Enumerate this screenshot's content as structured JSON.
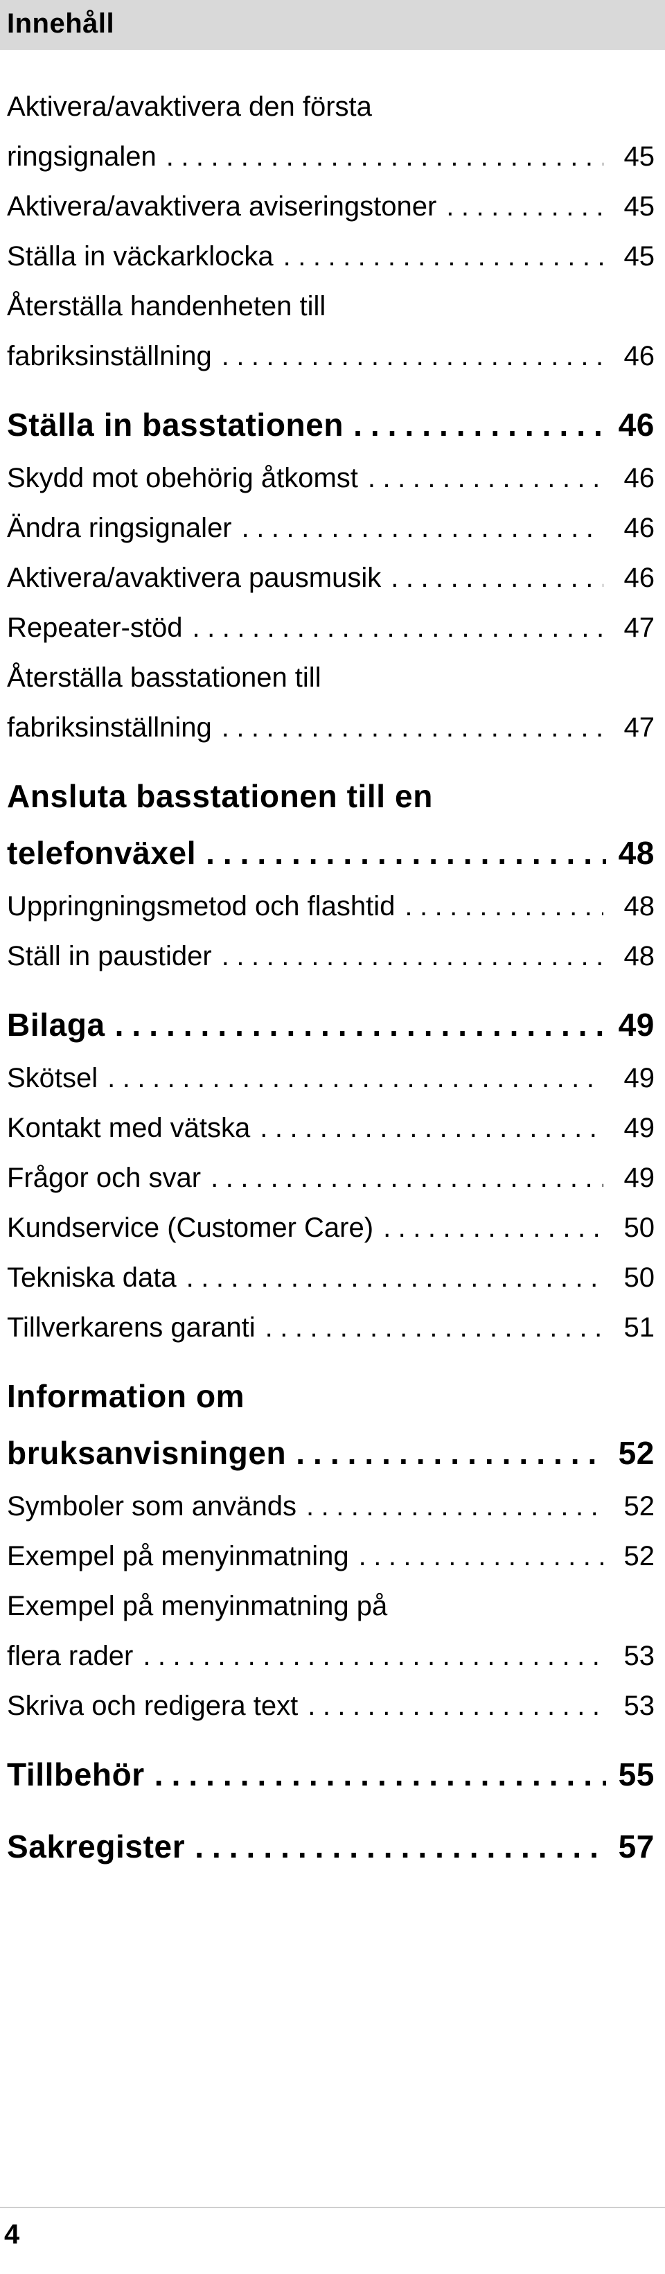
{
  "header": {
    "title": "Innehåll"
  },
  "toc": [
    {
      "lines": [
        "Aktivera/avaktivera den första",
        "ringsignalen"
      ],
      "page": "45",
      "level": "sub"
    },
    {
      "lines": [
        "Aktivera/avaktivera aviseringstoner"
      ],
      "page": "45",
      "level": "sub"
    },
    {
      "lines": [
        "Ställa in väckarklocka"
      ],
      "page": "45",
      "level": "sub"
    },
    {
      "lines": [
        "Återställa handenheten till",
        "fabriksinställning"
      ],
      "page": "46",
      "level": "sub"
    },
    {
      "lines": [
        "Ställa in basstationen"
      ],
      "page": "46",
      "level": "main"
    },
    {
      "lines": [
        "Skydd mot obehörig åtkomst"
      ],
      "page": "46",
      "level": "sub"
    },
    {
      "lines": [
        "Ändra ringsignaler"
      ],
      "page": "46",
      "level": "sub"
    },
    {
      "lines": [
        "Aktivera/avaktivera pausmusik"
      ],
      "page": "46",
      "level": "sub"
    },
    {
      "lines": [
        "Repeater-stöd"
      ],
      "page": "47",
      "level": "sub"
    },
    {
      "lines": [
        "Återställa basstationen till",
        "fabriksinställning"
      ],
      "page": "47",
      "level": "sub"
    },
    {
      "lines": [
        "Ansluta basstationen till en",
        "telefonväxel"
      ],
      "page": "48",
      "level": "main"
    },
    {
      "lines": [
        "Uppringningsmetod och flashtid"
      ],
      "page": "48",
      "level": "sub"
    },
    {
      "lines": [
        "Ställ in paustider"
      ],
      "page": "48",
      "level": "sub"
    },
    {
      "lines": [
        "Bilaga"
      ],
      "page": "49",
      "level": "main"
    },
    {
      "lines": [
        "Skötsel"
      ],
      "page": "49",
      "level": "sub"
    },
    {
      "lines": [
        "Kontakt med vätska"
      ],
      "page": "49",
      "level": "sub"
    },
    {
      "lines": [
        "Frågor och svar"
      ],
      "page": "49",
      "level": "sub"
    },
    {
      "lines": [
        "Kundservice (Customer Care)"
      ],
      "page": "50",
      "level": "sub"
    },
    {
      "lines": [
        "Tekniska data"
      ],
      "page": "50",
      "level": "sub"
    },
    {
      "lines": [
        "Tillverkarens garanti"
      ],
      "page": "51",
      "level": "sub"
    },
    {
      "lines": [
        "Information om",
        "bruksanvisningen"
      ],
      "page": "52",
      "level": "main"
    },
    {
      "lines": [
        "Symboler som används"
      ],
      "page": "52",
      "level": "sub"
    },
    {
      "lines": [
        "Exempel på menyinmatning"
      ],
      "page": "52",
      "level": "sub"
    },
    {
      "lines": [
        "Exempel på menyinmatning på",
        "flera rader"
      ],
      "page": "53",
      "level": "sub"
    },
    {
      "lines": [
        "Skriva och redigera text"
      ],
      "page": "53",
      "level": "sub"
    },
    {
      "lines": [
        "Tillbehör"
      ],
      "page": "55",
      "level": "main"
    },
    {
      "lines": [
        "Sakregister"
      ],
      "page": "57",
      "level": "main"
    }
  ],
  "footer": {
    "page_number": "4"
  }
}
